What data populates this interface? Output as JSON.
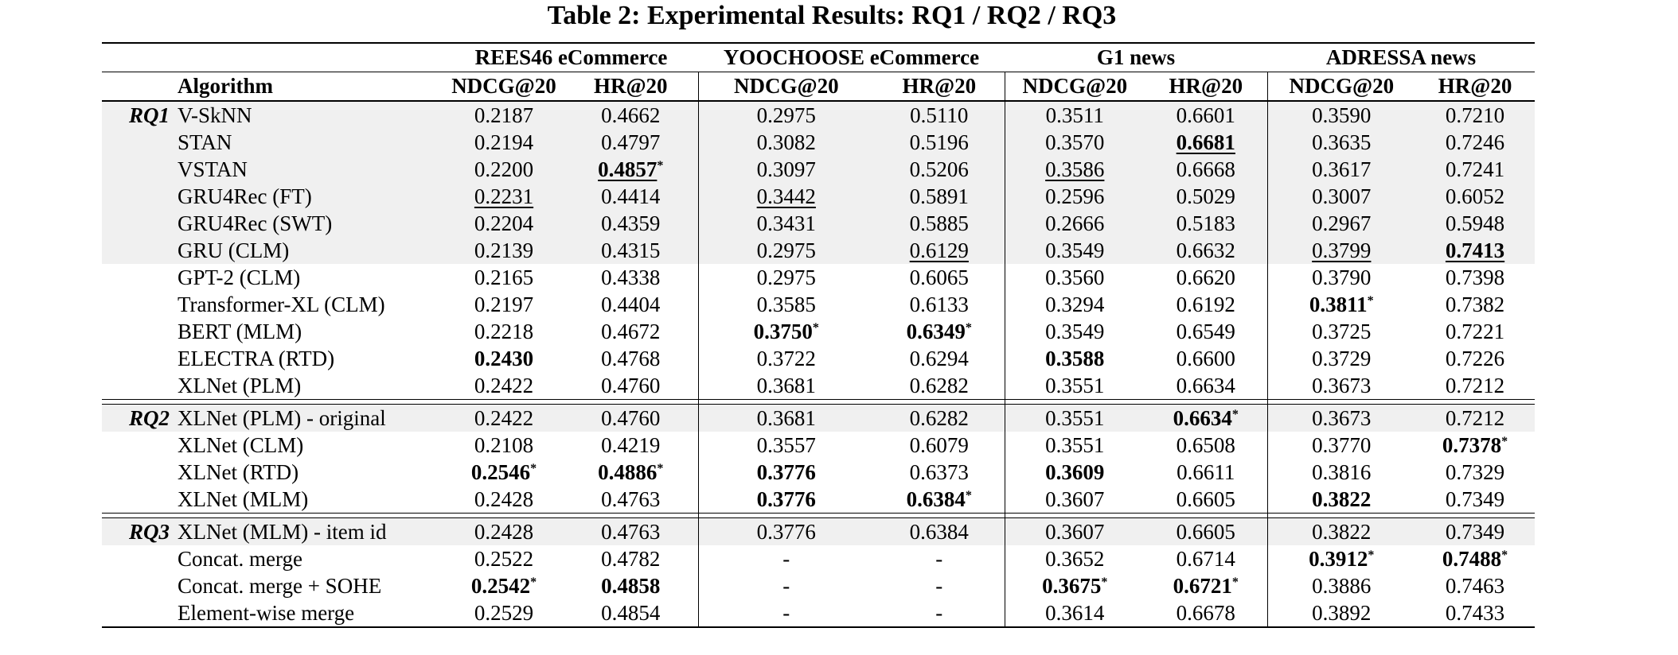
{
  "title": "Table 2: Experimental Results: RQ1 / RQ2 / RQ3",
  "significance_marker": "*",
  "row_shade_color": "#f0f0f0",
  "table": {
    "group_headers": [
      "REES46 eCommerce",
      "YOOCHOOSE eCommerce",
      "G1 news",
      "ADRESSA news"
    ],
    "algorithm_header": "Algorithm",
    "metric_headers": [
      "NDCG@20",
      "HR@20"
    ],
    "sections": [
      {
        "label": "RQ1",
        "rows": [
          {
            "algorithm": "V-SkNN",
            "shaded": true,
            "cells": [
              {
                "value": "0.2187"
              },
              {
                "value": "0.4662"
              },
              {
                "value": "0.2975"
              },
              {
                "value": "0.5110"
              },
              {
                "value": "0.3511"
              },
              {
                "value": "0.6601"
              },
              {
                "value": "0.3590"
              },
              {
                "value": "0.7210"
              }
            ]
          },
          {
            "algorithm": "STAN",
            "shaded": true,
            "cells": [
              {
                "value": "0.2194"
              },
              {
                "value": "0.4797"
              },
              {
                "value": "0.3082"
              },
              {
                "value": "0.5196"
              },
              {
                "value": "0.3570"
              },
              {
                "value": "0.6681",
                "bold": true,
                "underline": true
              },
              {
                "value": "0.3635"
              },
              {
                "value": "0.7246"
              }
            ]
          },
          {
            "algorithm": "VSTAN",
            "shaded": true,
            "cells": [
              {
                "value": "0.2200"
              },
              {
                "value": "0.4857",
                "bold": true,
                "underline": true,
                "star": true
              },
              {
                "value": "0.3097"
              },
              {
                "value": "0.5206"
              },
              {
                "value": "0.3586",
                "underline": true
              },
              {
                "value": "0.6668"
              },
              {
                "value": "0.3617"
              },
              {
                "value": "0.7241"
              }
            ]
          },
          {
            "algorithm": "GRU4Rec (FT)",
            "shaded": true,
            "cells": [
              {
                "value": "0.2231",
                "underline": true
              },
              {
                "value": "0.4414"
              },
              {
                "value": "0.3442",
                "underline": true
              },
              {
                "value": "0.5891"
              },
              {
                "value": "0.2596"
              },
              {
                "value": "0.5029"
              },
              {
                "value": "0.3007"
              },
              {
                "value": "0.6052"
              }
            ]
          },
          {
            "algorithm": "GRU4Rec (SWT)",
            "shaded": true,
            "cells": [
              {
                "value": "0.2204"
              },
              {
                "value": "0.4359"
              },
              {
                "value": "0.3431"
              },
              {
                "value": "0.5885"
              },
              {
                "value": "0.2666"
              },
              {
                "value": "0.5183"
              },
              {
                "value": "0.2967"
              },
              {
                "value": "0.5948"
              }
            ]
          },
          {
            "algorithm": "GRU (CLM)",
            "shaded": true,
            "cells": [
              {
                "value": "0.2139"
              },
              {
                "value": "0.4315"
              },
              {
                "value": "0.2975"
              },
              {
                "value": "0.6129",
                "underline": true
              },
              {
                "value": "0.3549"
              },
              {
                "value": "0.6632"
              },
              {
                "value": "0.3799",
                "underline": true
              },
              {
                "value": "0.7413",
                "bold": true,
                "underline": true
              }
            ]
          },
          {
            "algorithm": "GPT-2 (CLM)",
            "shaded": false,
            "cells": [
              {
                "value": "0.2165"
              },
              {
                "value": "0.4338"
              },
              {
                "value": "0.2975"
              },
              {
                "value": "0.6065"
              },
              {
                "value": "0.3560"
              },
              {
                "value": "0.6620"
              },
              {
                "value": "0.3790"
              },
              {
                "value": "0.7398"
              }
            ]
          },
          {
            "algorithm": "Transformer-XL (CLM)",
            "shaded": false,
            "cells": [
              {
                "value": "0.2197"
              },
              {
                "value": "0.4404"
              },
              {
                "value": "0.3585"
              },
              {
                "value": "0.6133"
              },
              {
                "value": "0.3294"
              },
              {
                "value": "0.6192"
              },
              {
                "value": "0.3811",
                "bold": true,
                "star": true
              },
              {
                "value": "0.7382"
              }
            ]
          },
          {
            "algorithm": "BERT (MLM)",
            "shaded": false,
            "cells": [
              {
                "value": "0.2218"
              },
              {
                "value": "0.4672"
              },
              {
                "value": "0.3750",
                "bold": true,
                "star": true
              },
              {
                "value": "0.6349",
                "bold": true,
                "star": true
              },
              {
                "value": "0.3549"
              },
              {
                "value": "0.6549"
              },
              {
                "value": "0.3725"
              },
              {
                "value": "0.7221"
              }
            ]
          },
          {
            "algorithm": "ELECTRA (RTD)",
            "shaded": false,
            "cells": [
              {
                "value": "0.2430",
                "bold": true
              },
              {
                "value": "0.4768"
              },
              {
                "value": "0.3722"
              },
              {
                "value": "0.6294"
              },
              {
                "value": "0.3588",
                "bold": true
              },
              {
                "value": "0.6600"
              },
              {
                "value": "0.3729"
              },
              {
                "value": "0.7226"
              }
            ]
          },
          {
            "algorithm": "XLNet (PLM)",
            "shaded": false,
            "cells": [
              {
                "value": "0.2422"
              },
              {
                "value": "0.4760"
              },
              {
                "value": "0.3681"
              },
              {
                "value": "0.6282"
              },
              {
                "value": "0.3551"
              },
              {
                "value": "0.6634"
              },
              {
                "value": "0.3673"
              },
              {
                "value": "0.7212"
              }
            ]
          }
        ]
      },
      {
        "label": "RQ2",
        "rows": [
          {
            "algorithm": "XLNet (PLM) - original",
            "shaded": true,
            "cells": [
              {
                "value": "0.2422"
              },
              {
                "value": "0.4760"
              },
              {
                "value": "0.3681"
              },
              {
                "value": "0.6282"
              },
              {
                "value": "0.3551"
              },
              {
                "value": "0.6634",
                "bold": true,
                "star": true
              },
              {
                "value": "0.3673"
              },
              {
                "value": "0.7212"
              }
            ]
          },
          {
            "algorithm": "XLNet (CLM)",
            "shaded": false,
            "cells": [
              {
                "value": "0.2108"
              },
              {
                "value": "0.4219"
              },
              {
                "value": "0.3557"
              },
              {
                "value": "0.6079"
              },
              {
                "value": "0.3551"
              },
              {
                "value": "0.6508"
              },
              {
                "value": "0.3770"
              },
              {
                "value": "0.7378",
                "bold": true,
                "star": true
              }
            ]
          },
          {
            "algorithm": "XLNet (RTD)",
            "shaded": false,
            "cells": [
              {
                "value": "0.2546",
                "bold": true,
                "star": true
              },
              {
                "value": "0.4886",
                "bold": true,
                "star": true
              },
              {
                "value": "0.3776",
                "bold": true
              },
              {
                "value": "0.6373"
              },
              {
                "value": "0.3609",
                "bold": true
              },
              {
                "value": "0.6611"
              },
              {
                "value": "0.3816"
              },
              {
                "value": "0.7329"
              }
            ]
          },
          {
            "algorithm": "XLNet (MLM)",
            "shaded": false,
            "cells": [
              {
                "value": "0.2428"
              },
              {
                "value": "0.4763"
              },
              {
                "value": "0.3776",
                "bold": true
              },
              {
                "value": "0.6384",
                "bold": true,
                "star": true
              },
              {
                "value": "0.3607"
              },
              {
                "value": "0.6605"
              },
              {
                "value": "0.3822",
                "bold": true
              },
              {
                "value": "0.7349"
              }
            ]
          }
        ]
      },
      {
        "label": "RQ3",
        "rows": [
          {
            "algorithm": "XLNet (MLM) - item id",
            "shaded": true,
            "cells": [
              {
                "value": "0.2428"
              },
              {
                "value": "0.4763"
              },
              {
                "value": "0.3776"
              },
              {
                "value": "0.6384"
              },
              {
                "value": "0.3607"
              },
              {
                "value": "0.6605"
              },
              {
                "value": "0.3822"
              },
              {
                "value": "0.7349"
              }
            ]
          },
          {
            "algorithm": "Concat. merge",
            "shaded": false,
            "cells": [
              {
                "value": "0.2522"
              },
              {
                "value": "0.4782"
              },
              {
                "value": "-"
              },
              {
                "value": "-"
              },
              {
                "value": "0.3652"
              },
              {
                "value": "0.6714"
              },
              {
                "value": "0.3912",
                "bold": true,
                "star": true
              },
              {
                "value": "0.7488",
                "bold": true,
                "star": true
              }
            ]
          },
          {
            "algorithm": "Concat. merge + SOHE",
            "shaded": false,
            "cells": [
              {
                "value": "0.2542",
                "bold": true,
                "star": true
              },
              {
                "value": "0.4858",
                "bold": true
              },
              {
                "value": "-"
              },
              {
                "value": "-"
              },
              {
                "value": "0.3675",
                "bold": true,
                "star": true
              },
              {
                "value": "0.6721",
                "bold": true,
                "star": true
              },
              {
                "value": "0.3886"
              },
              {
                "value": "0.7463"
              }
            ]
          },
          {
            "algorithm": "Element-wise merge",
            "shaded": false,
            "cells": [
              {
                "value": "0.2529"
              },
              {
                "value": "0.4854"
              },
              {
                "value": "-"
              },
              {
                "value": "-"
              },
              {
                "value": "0.3614"
              },
              {
                "value": "0.6678"
              },
              {
                "value": "0.3892"
              },
              {
                "value": "0.7433"
              }
            ]
          }
        ]
      }
    ]
  }
}
